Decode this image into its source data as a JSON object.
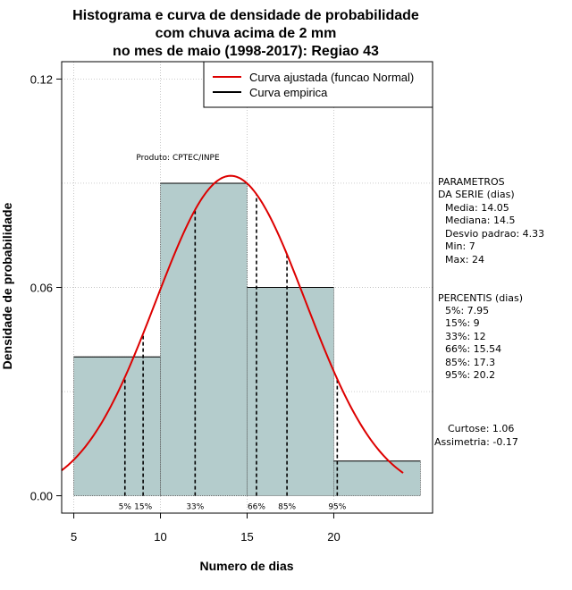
{
  "chart_data": {
    "type": "bar",
    "title_lines": [
      "Histograma e curva de densidade de probabilidade",
      "com chuva acima de 2 mm",
      "no mes de maio (1998-2017): Regiao 43"
    ],
    "xlabel": "Numero de dias",
    "ylabel": "Densidade de probabilidade",
    "xlim": [
      4.3,
      25.7
    ],
    "ylim": [
      -0.005,
      0.125
    ],
    "x_ticks": [
      5,
      10,
      15,
      20
    ],
    "y_ticks": [
      0.0,
      0.06,
      0.12
    ],
    "y_tick_labels": [
      "0.00",
      "0.06",
      "0.12"
    ],
    "grid_y": [
      0.03,
      0.06,
      0.09,
      0.12
    ],
    "bins": [
      {
        "from": 5,
        "to": 10,
        "density": 0.04
      },
      {
        "from": 10,
        "to": 15,
        "density": 0.09
      },
      {
        "from": 15,
        "to": 20,
        "density": 0.06
      },
      {
        "from": 20,
        "to": 25,
        "density": 0.01
      }
    ],
    "normal_fit": {
      "mean": 14.05,
      "sd": 4.33,
      "x_from": 4.3,
      "x_to": 24.0
    },
    "percentile_lines": [
      {
        "label": "5%",
        "x": 7.95
      },
      {
        "label": "15%",
        "x": 9
      },
      {
        "label": "33%",
        "x": 12
      },
      {
        "label": "66%",
        "x": 15.54
      },
      {
        "label": "85%",
        "x": 17.3
      },
      {
        "label": "95%",
        "x": 20.2
      }
    ],
    "legend": [
      {
        "label": "Curva ajustada (funcao Normal)",
        "color": "#dd0000"
      },
      {
        "label": "Curva empirica",
        "color": "#000000"
      }
    ],
    "annotation": "Produto: CPTEC/INPE",
    "parameters": {
      "heading": [
        "PARAMETROS",
        "DA SERIE (dias)"
      ],
      "lines": [
        "Media: 14.05",
        "Mediana: 14.5",
        "Desvio padrao: 4.33",
        "Min: 7",
        "Max: 24"
      ]
    },
    "percentis": {
      "heading": "PERCENTIS (dias)",
      "lines": [
        "5%: 7.95",
        "15%: 9",
        "33%: 12",
        "66%: 15.54",
        "85%: 17.3",
        "95%: 20.2"
      ]
    },
    "shape_stats": [
      "Curtose: 1.06",
      "Assimetria: -0.17"
    ],
    "colors": {
      "bar_fill": "#b4cccc",
      "curve": "#dd0000",
      "grid": "#b0b0b0"
    }
  }
}
